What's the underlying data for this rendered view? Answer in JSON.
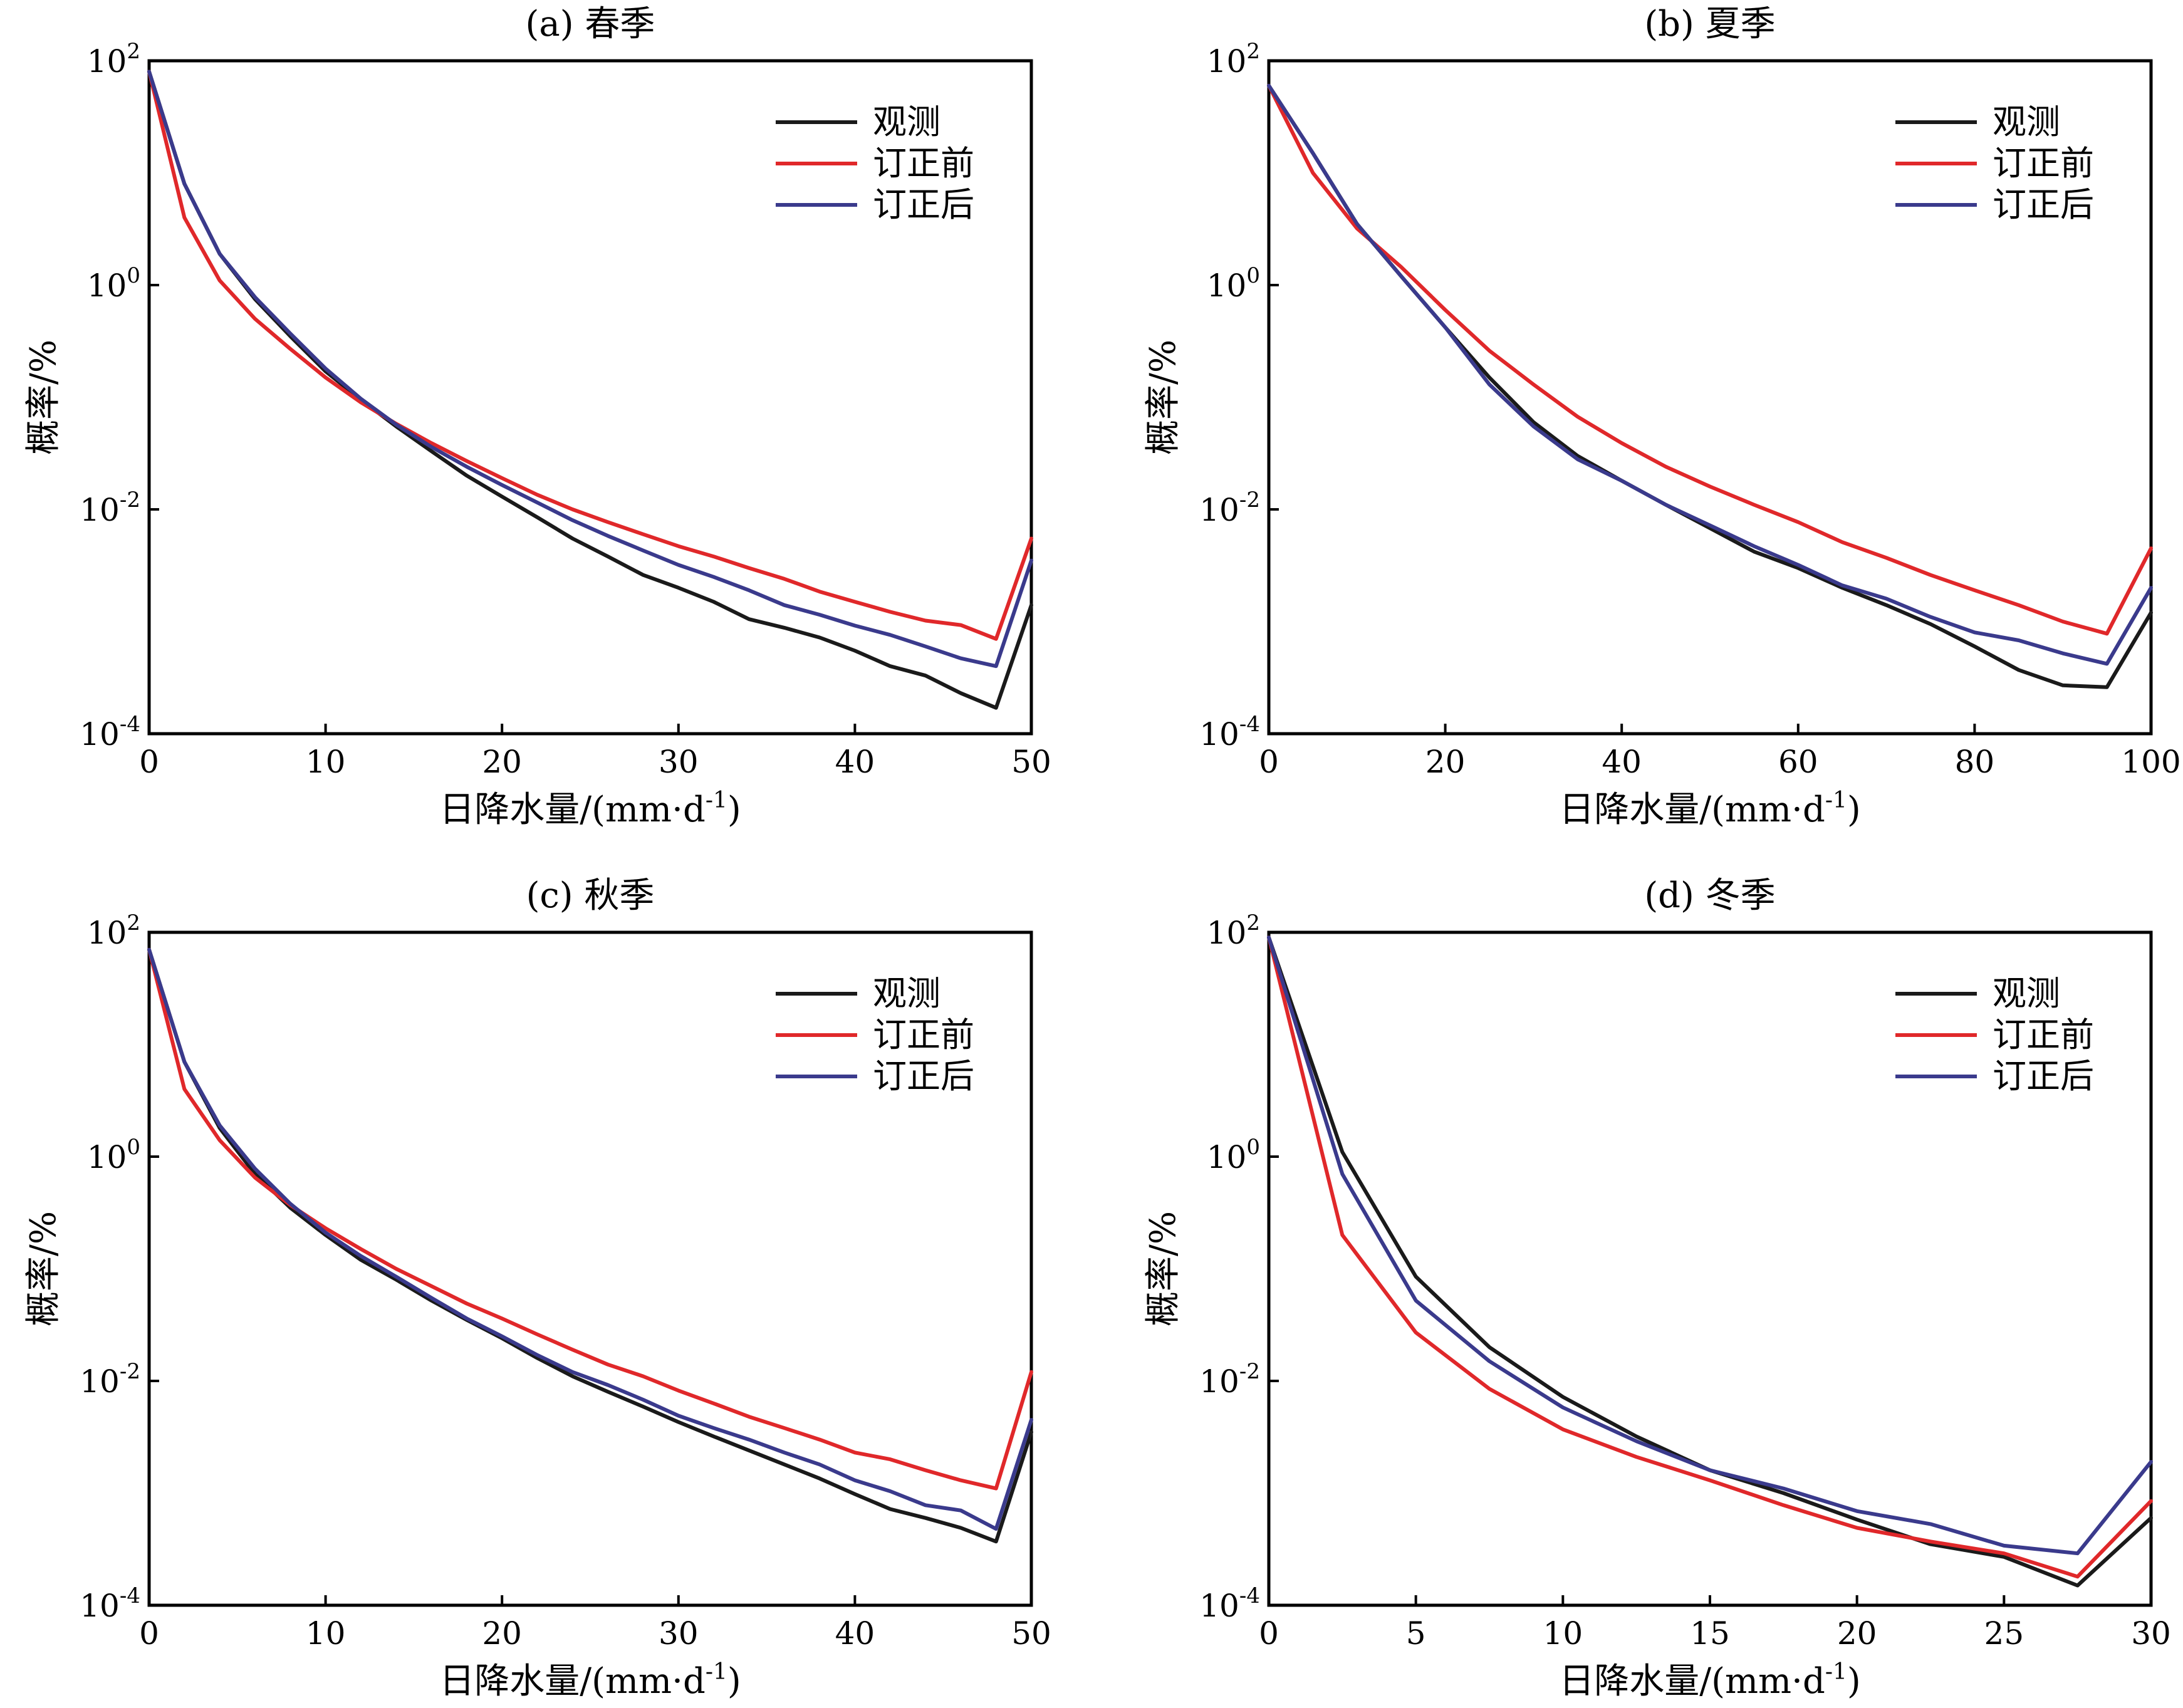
{
  "colors": {
    "observed": "#1a1a1a",
    "before": "#e0282a",
    "after": "#3a3a8c"
  },
  "chart_data": [
    {
      "type": "line",
      "title": "(a) 春季",
      "xlabel": "日降水量/(mm·d-1)",
      "ylabel": "概率/%",
      "yscale": "log",
      "xlim": [
        0,
        50
      ],
      "ylim": [
        0.0001,
        100
      ],
      "xticks": [
        0,
        10,
        20,
        30,
        40,
        50
      ],
      "yticks": [
        {
          "base": "10",
          "exp": "2",
          "value": 100
        },
        {
          "base": "10",
          "exp": "0",
          "value": 1
        },
        {
          "base": "10",
          "exp": "-2",
          "value": 0.01
        },
        {
          "base": "10",
          "exp": "-4",
          "value": 0.0001
        }
      ],
      "legend_position": "top-right",
      "x": [
        0,
        2,
        4,
        6,
        8,
        10,
        12,
        14,
        16,
        18,
        20,
        22,
        24,
        26,
        28,
        30,
        32,
        34,
        36,
        38,
        40,
        42,
        44,
        46,
        48,
        50
      ],
      "series": [
        {
          "name": "观测",
          "color_key": "observed",
          "values": [
            80,
            8,
            1.9,
            0.75,
            0.35,
            0.17,
            0.095,
            0.055,
            0.033,
            0.02,
            0.013,
            0.0085,
            0.0055,
            0.0038,
            0.0026,
            0.002,
            0.0015,
            0.00105,
            0.00088,
            0.00072,
            0.00055,
            0.0004,
            0.00033,
            0.00023,
            0.00017,
            0.0014
          ]
        },
        {
          "name": "订正前",
          "color_key": "before",
          "values": [
            80,
            4,
            1.1,
            0.5,
            0.27,
            0.15,
            0.09,
            0.058,
            0.039,
            0.027,
            0.019,
            0.0135,
            0.01,
            0.0077,
            0.006,
            0.0047,
            0.0038,
            0.003,
            0.0024,
            0.00185,
            0.0015,
            0.00122,
            0.00102,
            0.00093,
            0.0007,
            0.0055
          ]
        },
        {
          "name": "订正后",
          "color_key": "after",
          "values": [
            80,
            8,
            1.9,
            0.78,
            0.37,
            0.18,
            0.097,
            0.057,
            0.036,
            0.024,
            0.0165,
            0.0115,
            0.008,
            0.0058,
            0.0043,
            0.0032,
            0.0025,
            0.0019,
            0.0014,
            0.00115,
            0.00092,
            0.00076,
            0.0006,
            0.00047,
            0.0004,
            0.0035
          ]
        }
      ]
    },
    {
      "type": "line",
      "title": "(b) 夏季",
      "xlabel": "日降水量/(mm·d-1)",
      "ylabel": "概率/%",
      "yscale": "log",
      "xlim": [
        0,
        100
      ],
      "ylim": [
        0.0001,
        100
      ],
      "xticks": [
        0,
        20,
        40,
        60,
        80,
        100
      ],
      "yticks": [
        {
          "base": "10",
          "exp": "2",
          "value": 100
        },
        {
          "base": "10",
          "exp": "0",
          "value": 1
        },
        {
          "base": "10",
          "exp": "-2",
          "value": 0.01
        },
        {
          "base": "10",
          "exp": "-4",
          "value": 0.0001
        }
      ],
      "legend_position": "top-right",
      "x": [
        0,
        5,
        10,
        15,
        20,
        25,
        30,
        35,
        40,
        45,
        50,
        55,
        60,
        65,
        70,
        75,
        80,
        85,
        90,
        95,
        100
      ],
      "series": [
        {
          "name": "观测",
          "color_key": "observed",
          "values": [
            60,
            15,
            3.5,
            1.2,
            0.42,
            0.15,
            0.06,
            0.03,
            0.018,
            0.011,
            0.0068,
            0.0042,
            0.003,
            0.002,
            0.0014,
            0.00095,
            0.0006,
            0.00037,
            0.00027,
            0.00026,
            0.0012
          ]
        },
        {
          "name": "订正前",
          "color_key": "before",
          "values": [
            60,
            10,
            3.2,
            1.45,
            0.6,
            0.26,
            0.13,
            0.067,
            0.039,
            0.024,
            0.016,
            0.011,
            0.0077,
            0.0051,
            0.0037,
            0.0026,
            0.0019,
            0.0014,
            0.001,
            0.00078,
            0.0045
          ]
        },
        {
          "name": "订正后",
          "color_key": "after",
          "values": [
            60,
            15,
            3.5,
            1.2,
            0.42,
            0.13,
            0.055,
            0.028,
            0.018,
            0.011,
            0.0072,
            0.0047,
            0.0032,
            0.0021,
            0.0016,
            0.0011,
            0.0008,
            0.00068,
            0.00052,
            0.00042,
            0.002
          ]
        }
      ]
    },
    {
      "type": "line",
      "title": "(c) 秋季",
      "xlabel": "日降水量/(mm·d-1)",
      "ylabel": "概率/%",
      "yscale": "log",
      "xlim": [
        0,
        50
      ],
      "ylim": [
        0.0001,
        100
      ],
      "xticks": [
        0,
        10,
        20,
        30,
        40,
        50
      ],
      "yticks": [
        {
          "base": "10",
          "exp": "2",
          "value": 100
        },
        {
          "base": "10",
          "exp": "0",
          "value": 1
        },
        {
          "base": "10",
          "exp": "-2",
          "value": 0.01
        },
        {
          "base": "10",
          "exp": "-4",
          "value": 0.0001
        }
      ],
      "legend_position": "top-right",
      "x": [
        0,
        2,
        4,
        6,
        8,
        10,
        12,
        14,
        16,
        18,
        20,
        22,
        24,
        26,
        28,
        30,
        32,
        34,
        36,
        38,
        40,
        42,
        44,
        46,
        48,
        50
      ],
      "series": [
        {
          "name": "观测",
          "color_key": "observed",
          "values": [
            70,
            7,
            1.8,
            0.7,
            0.35,
            0.2,
            0.12,
            0.08,
            0.052,
            0.035,
            0.024,
            0.016,
            0.011,
            0.008,
            0.0059,
            0.0043,
            0.0032,
            0.0024,
            0.0018,
            0.00135,
            0.00098,
            0.00072,
            0.0006,
            0.00049,
            0.00037,
            0.0035
          ]
        },
        {
          "name": "订正前",
          "color_key": "before",
          "values": [
            70,
            4,
            1.4,
            0.65,
            0.37,
            0.23,
            0.15,
            0.1,
            0.07,
            0.049,
            0.036,
            0.026,
            0.019,
            0.014,
            0.011,
            0.0082,
            0.0063,
            0.0048,
            0.0038,
            0.003,
            0.0023,
            0.002,
            0.0016,
            0.0013,
            0.0011,
            0.012
          ]
        },
        {
          "name": "订正后",
          "color_key": "after",
          "values": [
            70,
            7,
            1.9,
            0.78,
            0.38,
            0.21,
            0.13,
            0.085,
            0.055,
            0.036,
            0.025,
            0.017,
            0.012,
            0.0092,
            0.0068,
            0.0049,
            0.0038,
            0.003,
            0.0023,
            0.0018,
            0.0013,
            0.00104,
            0.00078,
            0.0007,
            0.00048,
            0.0045
          ]
        }
      ]
    },
    {
      "type": "line",
      "title": "(d) 冬季",
      "xlabel": "日降水量/(mm·d-1)",
      "ylabel": "概率/%",
      "yscale": "log",
      "xlim": [
        0,
        30
      ],
      "ylim": [
        0.0001,
        100
      ],
      "xticks": [
        0,
        5,
        10,
        15,
        20,
        25,
        30
      ],
      "yticks": [
        {
          "base": "10",
          "exp": "2",
          "value": 100
        },
        {
          "base": "10",
          "exp": "0",
          "value": 1
        },
        {
          "base": "10",
          "exp": "-2",
          "value": 0.01
        },
        {
          "base": "10",
          "exp": "-4",
          "value": 0.0001
        }
      ],
      "legend_position": "top-right",
      "x": [
        0,
        2.5,
        5,
        7.5,
        10,
        12.5,
        15,
        17.5,
        20,
        22.5,
        25,
        27.5,
        30
      ],
      "series": [
        {
          "name": "观测",
          "color_key": "observed",
          "values": [
            90,
            1.1,
            0.085,
            0.02,
            0.0072,
            0.0032,
            0.0016,
            0.001,
            0.00058,
            0.00035,
            0.00027,
            0.00015,
            0.0006
          ]
        },
        {
          "name": "订正前",
          "color_key": "before",
          "values": [
            90,
            0.2,
            0.027,
            0.0085,
            0.0037,
            0.0021,
            0.0013,
            0.00078,
            0.00049,
            0.00037,
            0.00029,
            0.00018,
            0.00085
          ]
        },
        {
          "name": "订正后",
          "color_key": "after",
          "values": [
            90,
            0.7,
            0.052,
            0.015,
            0.0058,
            0.0029,
            0.0016,
            0.0011,
            0.00069,
            0.00053,
            0.00034,
            0.00029,
            0.0019
          ]
        }
      ]
    }
  ]
}
